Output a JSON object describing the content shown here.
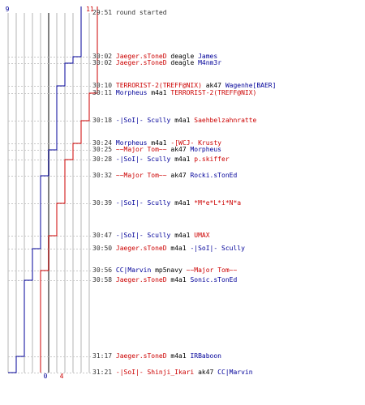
{
  "colors": {
    "ct": "#000099",
    "t": "#cc0000",
    "grid": "#b4b4b4",
    "dash": "#c8c8c8",
    "text": "#333333"
  },
  "scores": {
    "ct_top": "9",
    "t_top": "11",
    "ct_bottom": "0",
    "t_bottom": "4"
  },
  "events": [
    {
      "time": "29:51",
      "note": "round started"
    },
    {
      "time": "30:02",
      "killer": "Jaeger.sToneD",
      "killer_team": "t",
      "weapon": "deagle",
      "victim": "James",
      "victim_team": "ct"
    },
    {
      "time": "30:02",
      "killer": "Jaeger.sToneD",
      "killer_team": "t",
      "weapon": "deagle",
      "victim": "M4nm3r",
      "victim_team": "ct"
    },
    {
      "time": "30:10",
      "killer": "TERRORIST-2(TREFF@NIX)",
      "killer_team": "t",
      "weapon": "ak47",
      "victim": "Wagenhe[BAER]",
      "victim_team": "ct"
    },
    {
      "time": "30:11",
      "killer": "Morpheus",
      "killer_team": "ct",
      "weapon": "m4a1",
      "victim": "TERRORIST-2(TREFF@NIX)",
      "victim_team": "t"
    },
    {
      "time": "30:18",
      "killer": "-|SoI|- Scully",
      "killer_team": "ct",
      "weapon": "m4a1",
      "victim": "Saehbelzahnratte",
      "victim_team": "t"
    },
    {
      "time": "30:24",
      "killer": "Morpheus",
      "killer_team": "ct",
      "weapon": "m4a1",
      "victim": "-[WCJ- Krusty",
      "victim_team": "t"
    },
    {
      "time": "30:25",
      "killer": "~~Major Tom~~",
      "killer_team": "t",
      "weapon": "ak47",
      "victim": "Morpheus",
      "victim_team": "ct"
    },
    {
      "time": "30:28",
      "killer": "-|SoI|- Scully",
      "killer_team": "ct",
      "weapon": "m4a1",
      "victim": "p.skiffer",
      "victim_team": "t"
    },
    {
      "time": "30:32",
      "killer": "~~Major Tom~~",
      "killer_team": "t",
      "weapon": "ak47",
      "victim": "Rocki.sTonEd",
      "victim_team": "ct"
    },
    {
      "time": "30:39",
      "killer": "-|SoI|- Scully",
      "killer_team": "ct",
      "weapon": "m4a1",
      "victim": "*M*e*L*i*N*a",
      "victim_team": "t"
    },
    {
      "time": "30:47",
      "killer": "-|SoI|- Scully",
      "killer_team": "ct",
      "weapon": "m4a1",
      "victim": "UMAX",
      "victim_team": "t"
    },
    {
      "time": "30:50",
      "killer": "Jaeger.sToneD",
      "killer_team": "t",
      "weapon": "m4a1",
      "victim": "-|SoI|- Scully",
      "victim_team": "ct"
    },
    {
      "time": "30:56",
      "killer": "CC|Marvin",
      "killer_team": "ct",
      "weapon": "mp5navy",
      "victim": "~~Major Tom~~",
      "victim_team": "t"
    },
    {
      "time": "30:58",
      "killer": "Jaeger.sToneD",
      "killer_team": "t",
      "weapon": "m4a1",
      "victim": "Sonic.sTonEd",
      "victim_team": "ct"
    },
    {
      "time": "31:17",
      "killer": "Jaeger.sToneD",
      "killer_team": "t",
      "weapon": "m4a1",
      "victim": "IRBaboon",
      "victim_team": "ct"
    },
    {
      "time": "31:21",
      "killer": "-|SoI|- Shinji_Ikari",
      "killer_team": "t",
      "weapon": "ak47",
      "victim": "CC|Marvin",
      "victim_team": "ct"
    }
  ]
}
